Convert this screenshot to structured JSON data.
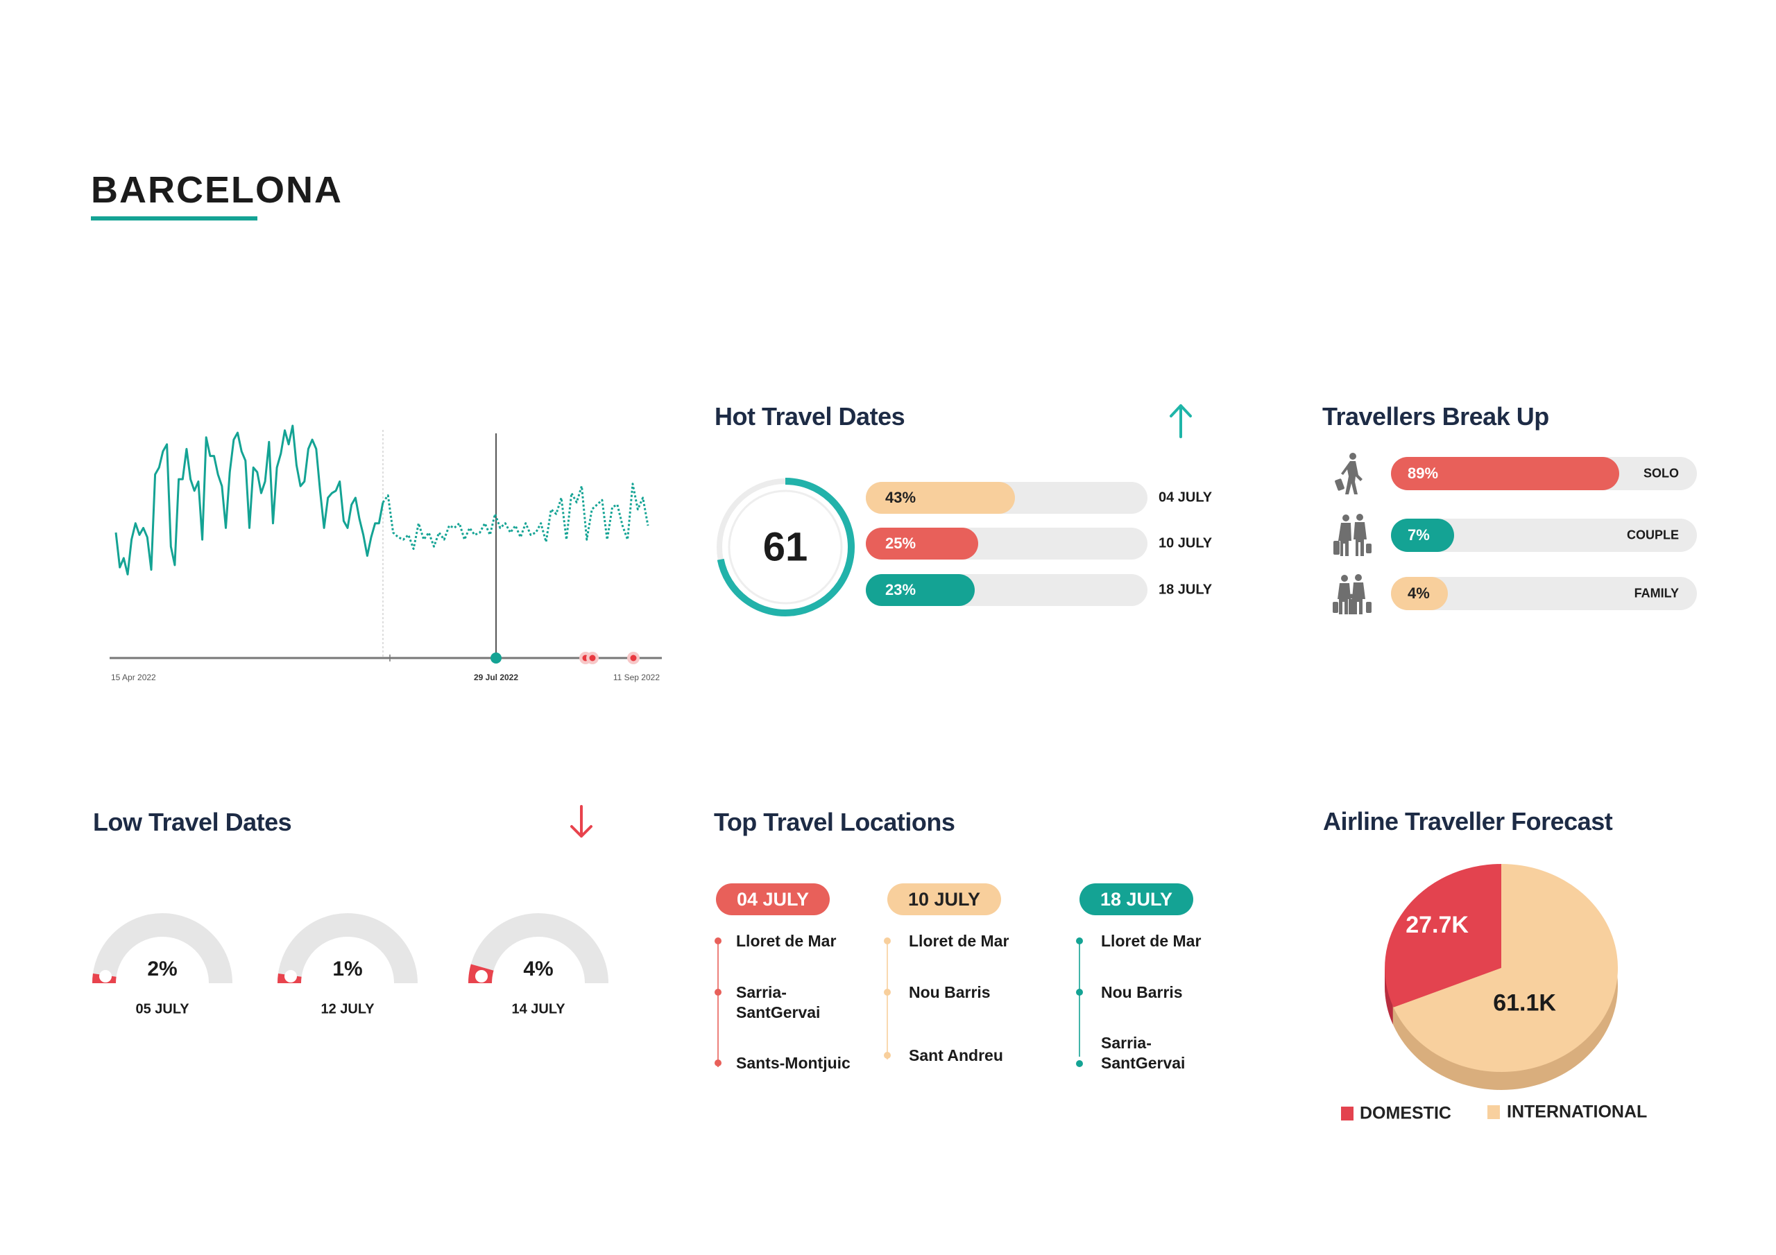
{
  "page": {
    "title": "BARCELONA"
  },
  "colors": {
    "teal": "#14a394",
    "red": "#e8605a",
    "peach": "#f8cf9c",
    "navy": "#1d2b45",
    "track": "#ebebeb",
    "pie_domestic": "#e3434f",
    "pie_international": "#f8d09e"
  },
  "chart_data": [
    {
      "type": "line",
      "title": "",
      "x_tick_labels": [
        "15 Apr 2022",
        "29 Jul 2022",
        "11 Sep 2022"
      ],
      "highlight_date": "29 Jul 2022",
      "grid": false,
      "series": [
        {
          "style": "solid",
          "values": [
            54,
            39,
            43,
            36,
            51,
            58,
            53,
            56,
            52,
            38,
            79,
            82,
            89,
            92,
            48,
            40,
            77,
            77,
            90,
            77,
            72,
            76,
            51,
            95,
            87,
            87,
            79,
            74,
            56,
            80,
            94,
            97,
            89,
            85,
            56,
            82,
            80,
            71,
            76,
            93,
            58,
            82,
            88,
            98,
            92,
            100,
            83,
            74,
            76,
            90,
            94,
            90,
            72,
            56,
            69,
            71,
            72,
            76,
            59,
            56,
            66,
            69,
            60,
            53,
            44,
            52,
            58,
            58,
            67
          ]
        },
        {
          "style": "dotted",
          "values": [
            67,
            70,
            54,
            52,
            51,
            53,
            47,
            58,
            51,
            54,
            48,
            54,
            51,
            57,
            56,
            58,
            51,
            56,
            53,
            54,
            58,
            53,
            62,
            56,
            58,
            54,
            57,
            52,
            58,
            53,
            54,
            58,
            50,
            64,
            62,
            69,
            51,
            71,
            67,
            74,
            51,
            64,
            66,
            68,
            51,
            65,
            66,
            57,
            51,
            75,
            64,
            69,
            57
          ]
        }
      ],
      "markers": [
        {
          "type": "current",
          "color": "#14a394"
        },
        {
          "type": "alert",
          "color": "#e8383f"
        },
        {
          "type": "alert",
          "color": "#e8383f"
        },
        {
          "type": "alert",
          "color": "#e8383f"
        }
      ]
    },
    {
      "type": "pie",
      "title": "Airline Traveller Forecast",
      "slices": [
        {
          "name": "DOMESTIC",
          "value": 27.7,
          "label": "27.7K",
          "color": "#e3434f"
        },
        {
          "name": "INTERNATIONAL",
          "value": 61.1,
          "label": "61.1K",
          "color": "#f8d09e"
        }
      ],
      "legend": "bottom"
    }
  ],
  "hot": {
    "title": "Hot Travel Dates",
    "arrow_icon": "arrow-up-icon",
    "ring_value": "61",
    "ring_fraction": 0.72,
    "bars": [
      {
        "value": "43%",
        "pct": 43,
        "date": "04 JULY",
        "color": "#f8cf9c",
        "text": "#222"
      },
      {
        "value": "25%",
        "pct": 25,
        "date": "10 JULY",
        "color": "#e8605a",
        "text": "#fff"
      },
      {
        "value": "23%",
        "pct": 23,
        "date": "18 JULY",
        "color": "#14a394",
        "text": "#fff"
      }
    ]
  },
  "travellers": {
    "title": "Travellers Break Up",
    "items": [
      {
        "value": "89%",
        "pct": 89,
        "label": "SOLO",
        "icon": "solo-traveller-icon",
        "color": "#e8605a",
        "text": "#fff"
      },
      {
        "value": "7%",
        "pct": 7,
        "label": "COUPLE",
        "icon": "couple-traveller-icon",
        "color": "#14a394",
        "text": "#fff"
      },
      {
        "value": "4%",
        "pct": 4,
        "label": "FAMILY",
        "icon": "family-traveller-icon",
        "color": "#f8cf9c",
        "text": "#222"
      }
    ]
  },
  "low": {
    "title": "Low Travel Dates",
    "arrow_icon": "arrow-down-icon",
    "gauges": [
      {
        "value": "2%",
        "pct": 2,
        "date": "05 JULY"
      },
      {
        "value": "1%",
        "pct": 1,
        "date": "12 JULY"
      },
      {
        "value": "4%",
        "pct": 4,
        "date": "14 JULY"
      }
    ]
  },
  "locations": {
    "title": "Top Travel Locations",
    "columns": [
      {
        "date": "04 JULY",
        "color": "#e8605a",
        "text": "#fff",
        "places": [
          "Lloret de Mar",
          "Sarria-\nSantGervai",
          "Sants-Montjuic"
        ]
      },
      {
        "date": "10 JULY",
        "color": "#f8cf9c",
        "text": "#222",
        "places": [
          "Lloret de Mar",
          "Nou Barris",
          "Sant Andreu"
        ]
      },
      {
        "date": "18 JULY",
        "color": "#14a394",
        "text": "#fff",
        "places": [
          "Lloret de Mar",
          "Nou Barris",
          "Sarria-\nSantGervai"
        ]
      }
    ]
  },
  "forecast": {
    "title": "Airline Traveller Forecast",
    "legend": [
      "DOMESTIC",
      "INTERNATIONAL"
    ]
  }
}
